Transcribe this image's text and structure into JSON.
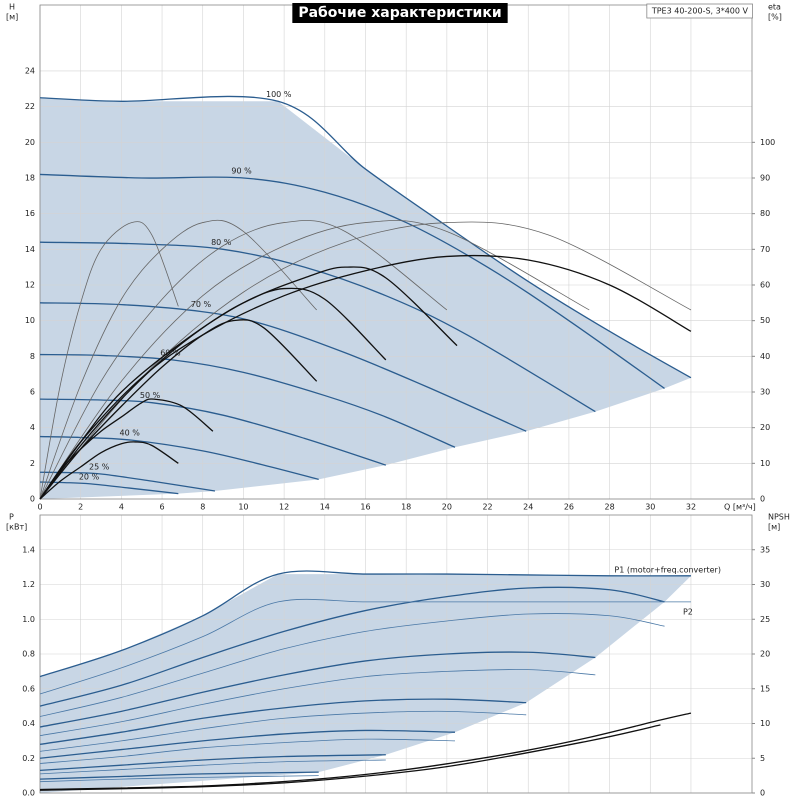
{
  "chart_data": [
    {
      "type": "line",
      "title": "Рабочие характеристики",
      "note": "TPE3 40-200-S, 3*400 V",
      "ylabel": "H",
      "yunit": "[м]",
      "y2label": "eta",
      "y2unit": "[%]",
      "xlabel": "Q [м³/ч]",
      "xlim": [
        0,
        35
      ],
      "ylim": [
        0,
        27.7
      ],
      "y2lim": [
        0,
        138.5
      ],
      "xticks": [
        0,
        2,
        4,
        6,
        8,
        10,
        12,
        14,
        16,
        18,
        20,
        22,
        24,
        26,
        28,
        30,
        32
      ],
      "yticks": [
        0,
        2,
        4,
        6,
        8,
        10,
        12,
        14,
        16,
        18,
        20,
        22,
        24
      ],
      "y2ticks": [
        0,
        10,
        20,
        30,
        40,
        50,
        60,
        70,
        80,
        90,
        100
      ],
      "grid": true,
      "region_color": "#c8d6e5",
      "series": [
        {
          "name": "100 %",
          "color": "#2b5d8f",
          "x": [
            0,
            4,
            11.7,
            16,
            20,
            24,
            28,
            32
          ],
          "values": [
            22.5,
            22.3,
            22.3,
            18.5,
            15.3,
            12.2,
            9.4,
            6.8
          ]
        },
        {
          "name": "90 %",
          "color": "#2b5d8f",
          "x": [
            0,
            5,
            10,
            14,
            18,
            22,
            26,
            30.7
          ],
          "values": [
            18.2,
            18.0,
            18.0,
            17.2,
            15.5,
            13,
            10,
            6.2
          ]
        },
        {
          "name": "80 %",
          "color": "#2b5d8f",
          "x": [
            0,
            5,
            9,
            13,
            17,
            21,
            27.3
          ],
          "values": [
            14.4,
            14.3,
            14.0,
            13.0,
            11.4,
            9.2,
            4.9
          ]
        },
        {
          "name": "70 %",
          "color": "#2b5d8f",
          "x": [
            0,
            4,
            8,
            11,
            15,
            19,
            23.9
          ],
          "values": [
            11,
            10.9,
            10.5,
            9.8,
            8.2,
            6.3,
            3.8
          ]
        },
        {
          "name": "60 %",
          "color": "#2b5d8f",
          "x": [
            0,
            3,
            6.5,
            10,
            14,
            17,
            20.4
          ],
          "values": [
            8.1,
            8.05,
            7.8,
            7.1,
            5.8,
            4.6,
            2.9
          ]
        },
        {
          "name": "50 %",
          "color": "#2b5d8f",
          "x": [
            0,
            3,
            5.5,
            9,
            13,
            17
          ],
          "values": [
            5.6,
            5.55,
            5.4,
            4.7,
            3.4,
            1.9
          ]
        },
        {
          "name": "40 %",
          "color": "#2b5d8f",
          "x": [
            0,
            2,
            4.5,
            8,
            11,
            13.7
          ],
          "values": [
            3.5,
            3.45,
            3.3,
            2.7,
            1.9,
            1.1
          ]
        },
        {
          "name": "25 %",
          "color": "#2b5d8f",
          "x": [
            0,
            1.5,
            3,
            5.5,
            8.6
          ],
          "values": [
            1.5,
            1.48,
            1.4,
            1.0,
            0.45
          ]
        },
        {
          "name": "20 %",
          "color": "#2b5d8f",
          "x": [
            0,
            1.2,
            2.5,
            4.5,
            6.8
          ],
          "values": [
            0.95,
            0.92,
            0.85,
            0.6,
            0.3
          ]
        },
        {
          "axis": "y2",
          "color": "#666666",
          "x": [
            0,
            1,
            2,
            3,
            4.5,
            5.5,
            6.8
          ],
          "values": [
            0,
            32,
            55,
            70,
            77.5,
            74,
            54
          ]
        },
        {
          "axis": "y2",
          "color": "#666666",
          "x": [
            0,
            2,
            4,
            6,
            8,
            10,
            13.6
          ],
          "values": [
            0,
            32,
            56,
            70,
            77.5,
            75,
            53
          ]
        },
        {
          "axis": "y2",
          "color": "#666666",
          "x": [
            0,
            3,
            6,
            9,
            12,
            15,
            20
          ],
          "values": [
            0,
            33,
            56,
            71,
            77.5,
            75,
            53
          ]
        },
        {
          "axis": "y2",
          "color": "#666666",
          "x": [
            0,
            4,
            8,
            12,
            16,
            20,
            27
          ],
          "values": [
            0,
            33,
            57,
            71,
            77.5,
            75,
            53
          ]
        },
        {
          "axis": "y2",
          "color": "#666666",
          "x": [
            0,
            5,
            10,
            15,
            20,
            25,
            32
          ],
          "values": [
            0,
            34,
            58,
            72,
            77.5,
            74,
            53
          ]
        },
        {
          "axis": "y2",
          "color": "#111111",
          "x": [
            0,
            1,
            2,
            3,
            4,
            4.7,
            5.5,
            6.8
          ],
          "values": [
            0,
            5,
            9,
            13,
            15.5,
            16,
            15,
            10
          ]
        },
        {
          "axis": "y2",
          "color": "#111111",
          "x": [
            0,
            1,
            2,
            3,
            4,
            5,
            5.6,
            7,
            8.5
          ],
          "values": [
            0,
            8,
            14,
            19,
            23,
            27,
            28,
            26,
            19
          ]
        },
        {
          "axis": "y2",
          "color": "#111111",
          "x": [
            0,
            2,
            4,
            6,
            8,
            9.5,
            11,
            13.6
          ],
          "values": [
            0,
            14,
            26,
            37,
            46,
            50,
            48,
            33
          ]
        },
        {
          "axis": "y2",
          "color": "#111111",
          "x": [
            0,
            2,
            4,
            6,
            8,
            10,
            12,
            14,
            17
          ],
          "values": [
            0,
            15,
            28,
            39,
            48,
            55,
            59,
            56,
            39
          ]
        },
        {
          "axis": "y2",
          "color": "#111111",
          "x": [
            0,
            2,
            4,
            7,
            10,
            13,
            15,
            17,
            20.5
          ],
          "values": [
            0,
            16,
            30,
            44,
            55,
            62,
            65,
            62,
            43
          ]
        },
        {
          "axis": "y2",
          "color": "#111111",
          "x": [
            0,
            2,
            5,
            8,
            12,
            16,
            20,
            24,
            28,
            32
          ],
          "values": [
            0,
            16,
            34,
            46,
            57,
            64,
            68,
            67,
            60,
            47
          ]
        }
      ]
    },
    {
      "type": "line",
      "ylabel": "P",
      "yunit": "[кВт]",
      "y2label": "NPSH",
      "y2unit": "[м]",
      "xlim": [
        0,
        35
      ],
      "ylim": [
        0,
        1.6
      ],
      "y2lim": [
        0,
        40
      ],
      "xticks": [
        0,
        2,
        4,
        6,
        8,
        10,
        12,
        14,
        16,
        18,
        20,
        22,
        24,
        26,
        28,
        30,
        32
      ],
      "yticks": [
        {
          "value": 0,
          "label": "0.0"
        },
        0.2,
        0.4,
        0.6,
        0.8,
        {
          "value": 1,
          "label": "1.0"
        },
        1.2,
        1.4
      ],
      "y2ticks": [
        0,
        5,
        10,
        15,
        20,
        25,
        30,
        35
      ],
      "grid": true,
      "region_color": "#c8d6e5",
      "series": [
        {
          "name": "P1 (motor+freq.converter)",
          "color": "#2b5d8f",
          "x": [
            0,
            4,
            8,
            11.7,
            16,
            20,
            24,
            28,
            32
          ],
          "values": [
            0.67,
            0.82,
            1.02,
            1.26,
            1.26,
            1.26,
            1.255,
            1.25,
            1.25
          ]
        },
        {
          "color": "#2b5d8f",
          "x": [
            0,
            4,
            8,
            12,
            16,
            20,
            24,
            28,
            30.7
          ],
          "values": [
            0.5,
            0.62,
            0.78,
            0.93,
            1.05,
            1.13,
            1.18,
            1.17,
            1.1
          ]
        },
        {
          "color": "#2b5d8f",
          "x": [
            0,
            4,
            8,
            12,
            16,
            20,
            24,
            27.3
          ],
          "values": [
            0.38,
            0.47,
            0.58,
            0.68,
            0.76,
            0.8,
            0.81,
            0.78
          ]
        },
        {
          "color": "#2b5d8f",
          "x": [
            0,
            4,
            8,
            12,
            16,
            20,
            23.9
          ],
          "values": [
            0.28,
            0.35,
            0.43,
            0.49,
            0.53,
            0.54,
            0.52
          ]
        },
        {
          "color": "#2b5d8f",
          "x": [
            0,
            4,
            8,
            12,
            16,
            20.4
          ],
          "values": [
            0.2,
            0.25,
            0.3,
            0.34,
            0.36,
            0.35
          ]
        },
        {
          "color": "#2b5d8f",
          "x": [
            0,
            4,
            8,
            12,
            17
          ],
          "values": [
            0.13,
            0.16,
            0.19,
            0.21,
            0.22
          ]
        },
        {
          "color": "#2b5d8f",
          "x": [
            0,
            4,
            8,
            13.7
          ],
          "values": [
            0.08,
            0.095,
            0.11,
            0.12
          ]
        },
        {
          "name": "P2",
          "color": "#4a78a6",
          "x": [
            0,
            4,
            8,
            11.7,
            16,
            20,
            24,
            28,
            32
          ],
          "values": [
            0.57,
            0.72,
            0.9,
            1.1,
            1.1,
            1.1,
            1.1,
            1.1,
            1.1
          ]
        },
        {
          "color": "#4a78a6",
          "x": [
            0,
            4,
            8,
            12,
            16,
            20,
            24,
            28,
            30.7
          ],
          "values": [
            0.44,
            0.55,
            0.69,
            0.83,
            0.93,
            0.99,
            1.03,
            1.02,
            0.96
          ]
        },
        {
          "color": "#4a78a6",
          "x": [
            0,
            4,
            8,
            12,
            16,
            20,
            24,
            27.3
          ],
          "values": [
            0.33,
            0.41,
            0.51,
            0.6,
            0.67,
            0.7,
            0.71,
            0.68
          ]
        },
        {
          "color": "#4a78a6",
          "x": [
            0,
            4,
            8,
            12,
            16,
            20,
            23.9
          ],
          "values": [
            0.24,
            0.3,
            0.37,
            0.43,
            0.46,
            0.47,
            0.45
          ]
        },
        {
          "color": "#4a78a6",
          "x": [
            0,
            4,
            8,
            12,
            16,
            20.4
          ],
          "values": [
            0.17,
            0.21,
            0.26,
            0.29,
            0.31,
            0.3
          ]
        },
        {
          "color": "#4a78a6",
          "x": [
            0,
            4,
            8,
            12,
            17
          ],
          "values": [
            0.11,
            0.135,
            0.16,
            0.18,
            0.19
          ]
        },
        {
          "color": "#4a78a6",
          "x": [
            0,
            4,
            8,
            13.7
          ],
          "values": [
            0.065,
            0.08,
            0.09,
            0.1
          ]
        },
        {
          "axis": "y2",
          "color": "#111111",
          "x": [
            0,
            8,
            13.6,
            17,
            20,
            23.7,
            27,
            30.5,
            32
          ],
          "values": [
            0.5,
            1,
            2,
            3,
            4.2,
            6,
            8,
            10.5,
            11.5
          ]
        },
        {
          "axis": "y2",
          "color": "#111111",
          "x": [
            0,
            8,
            13.6,
            20,
            27,
            30.5
          ],
          "values": [
            0.4,
            0.9,
            1.8,
            3.8,
            7.5,
            9.8
          ]
        }
      ]
    }
  ]
}
